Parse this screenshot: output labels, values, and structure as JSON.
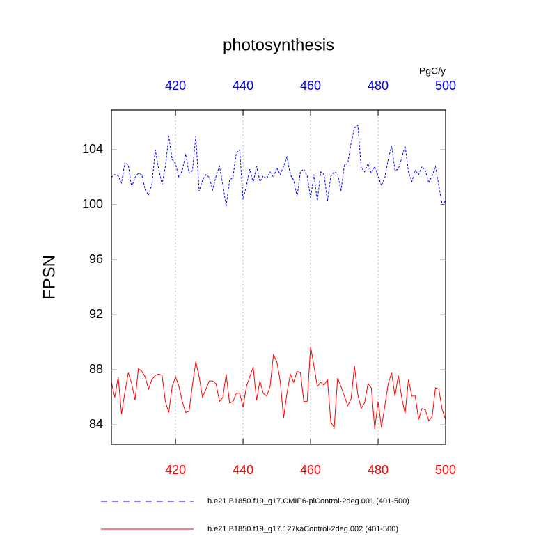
{
  "chart_data": {
    "type": "line",
    "title": "photosynthesis",
    "ylabel": "FPSN",
    "units": "PgC/y",
    "xlim": [
      401,
      500
    ],
    "xticks": [
      420,
      440,
      460,
      480,
      500
    ],
    "ylim": [
      82.6,
      106.9
    ],
    "yticks": [
      84,
      88,
      92,
      96,
      100,
      104
    ],
    "xgrid": true,
    "x": [
      401,
      402,
      403,
      404,
      405,
      406,
      407,
      408,
      409,
      410,
      411,
      412,
      413,
      414,
      415,
      416,
      417,
      418,
      419,
      420,
      421,
      422,
      423,
      424,
      425,
      426,
      427,
      428,
      429,
      430,
      431,
      432,
      433,
      434,
      435,
      436,
      437,
      438,
      439,
      440,
      441,
      442,
      443,
      444,
      445,
      446,
      447,
      448,
      449,
      450,
      451,
      452,
      453,
      454,
      455,
      456,
      457,
      458,
      459,
      460,
      461,
      462,
      463,
      464,
      465,
      466,
      467,
      468,
      469,
      470,
      471,
      472,
      473,
      474,
      475,
      476,
      477,
      478,
      479,
      480,
      481,
      482,
      483,
      484,
      485,
      486,
      487,
      488,
      489,
      490,
      491,
      492,
      493,
      494,
      495,
      496,
      497,
      498,
      499,
      500
    ],
    "series": [
      {
        "name": "b.e21.B1850.f19_g17.CMIP6-piControl-2deg.001 (401-500)",
        "color": "#0000ff",
        "dash": true,
        "values": [
          102,
          102.2,
          102.1,
          101.6,
          103.1,
          102.9,
          101.3,
          102,
          102.3,
          102.2,
          101.1,
          100.7,
          101.5,
          104,
          102.6,
          101.5,
          102.8,
          105,
          103.3,
          103,
          102,
          102.5,
          103.7,
          102.3,
          102.5,
          105,
          101,
          101.8,
          102.2,
          102,
          101.1,
          102.1,
          102.8,
          101.5,
          99.9,
          101.8,
          102,
          103.8,
          104,
          100.4,
          101.4,
          102.6,
          101.6,
          102.8,
          101.7,
          102.1,
          101.9,
          102.4,
          102,
          102.7,
          102.2,
          102.8,
          103.5,
          102.2,
          101.8,
          100.6,
          102.4,
          102.6,
          102.1,
          100.5,
          102.2,
          100.3,
          102.4,
          102.2,
          100.3,
          102.1,
          102.4,
          102.3,
          101,
          102.9,
          103,
          104.5,
          105.6,
          105.8,
          102.7,
          102.4,
          103,
          102.3,
          102.8,
          102.1,
          101.4,
          102,
          103.3,
          104.3,
          102.5,
          102.6,
          103.4,
          104.3,
          102.4,
          101.7,
          102.5,
          102.2,
          102.8,
          102.5,
          101.6,
          102.1,
          102.8,
          101.4,
          100,
          100.3
        ]
      },
      {
        "name": "b.e21.B1850.f19_g17.127kaControl-2deg.002 (401-500)",
        "color": "#ff0000",
        "dash": false,
        "values": [
          87.1,
          86,
          87.5,
          84.8,
          86.4,
          87.8,
          87,
          85.8,
          88.1,
          87.9,
          87.5,
          86.6,
          87.3,
          87.6,
          87.7,
          87.6,
          85.7,
          84.9,
          86.8,
          87.5,
          86.8,
          85.7,
          84.9,
          85,
          86.9,
          88.6,
          87.5,
          86,
          86.6,
          87.2,
          87.2,
          87,
          85.7,
          86,
          87.7,
          85.6,
          85.7,
          86.3,
          86.3,
          85.3,
          86.8,
          87.5,
          88.2,
          85.8,
          87.2,
          86.3,
          86.1,
          86.8,
          89.1,
          88.6,
          87.2,
          84.5,
          86.3,
          87.7,
          87.1,
          87.9,
          87.8,
          85.7,
          85.7,
          89.7,
          88.3,
          86.8,
          87.1,
          86.9,
          87.3,
          84.2,
          83.8,
          87.4,
          86.8,
          86.1,
          85.4,
          85.9,
          88.3,
          86.2,
          85.2,
          85.6,
          87,
          86.7,
          83.7,
          85.7,
          83.8,
          85.4,
          87,
          87.8,
          86.1,
          87.6,
          86,
          84.8,
          87.3,
          86.1,
          86.1,
          84.4,
          85.2,
          85.1,
          84.3,
          84.6,
          86.7,
          86.6,
          85.1,
          84.4
        ]
      }
    ]
  }
}
